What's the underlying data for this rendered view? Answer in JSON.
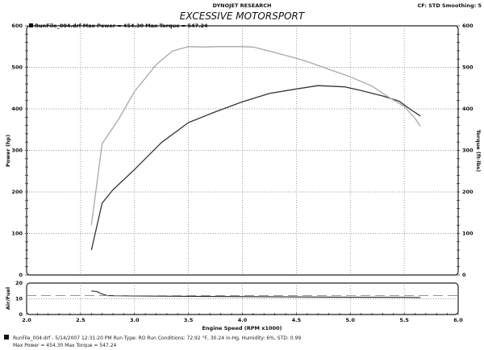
{
  "header": {
    "company": "DYNOJET RESEARCH",
    "settings": "CF: STD  Smoothing: 5",
    "title": "EXCESSIVE MOTORSPORT"
  },
  "legend_top": "RunFile_004.drf Max Power = 454.30    Max Torque = 547.24",
  "footer": {
    "line1": "RunFile_004.drf - 5/14/2007 12:31:20 PM  Run Type: RO  Run Conditions: 72.92 °F, 30.24 in-Hg,  Humidity:  6%, STD: 0.99",
    "line2": "Max Power = 454.30  Max Torque = 547.24"
  },
  "colors": {
    "power": "#333333",
    "torque": "#a8a8a8",
    "afr": "#222222",
    "afr_ref": "#888888"
  },
  "chart_data": [
    {
      "type": "line",
      "title": "EXCESSIVE MOTORSPORT",
      "xlabel": "Engine Speed (RPM x1000)",
      "ylabel": "Power (hp)",
      "y2label": "Torque (ft-lbs)",
      "xlim": [
        2.0,
        6.0
      ],
      "ylim": [
        0,
        600
      ],
      "y2lim": [
        0,
        600
      ],
      "xticks": [
        "2.0",
        "2.5",
        "3.0",
        "3.5",
        "4.0",
        "4.5",
        "5.0",
        "5.5",
        "6.0"
      ],
      "yticks": [
        "0",
        "100",
        "200",
        "300",
        "400",
        "500",
        "600"
      ],
      "grid": true,
      "series": [
        {
          "name": "Power",
          "color": "#333333",
          "x": [
            2.6,
            2.7,
            2.8,
            3.0,
            3.25,
            3.5,
            3.75,
            4.0,
            4.25,
            4.5,
            4.7,
            4.95,
            5.1,
            5.3,
            5.45,
            5.55,
            5.65
          ],
          "y": [
            60,
            173,
            205,
            254,
            319,
            367,
            393,
            417,
            437,
            448,
            456,
            453,
            444,
            431,
            419,
            400,
            383
          ]
        },
        {
          "name": "Torque",
          "color": "#a8a8a8",
          "x": [
            2.6,
            2.7,
            2.85,
            3.0,
            3.2,
            3.35,
            3.5,
            3.65,
            3.75,
            4.0,
            4.1,
            4.25,
            4.5,
            4.6,
            4.75,
            5.0,
            5.2,
            5.35,
            5.5,
            5.6,
            5.65
          ],
          "y": [
            120,
            316,
            374,
            442,
            506,
            539,
            550,
            549,
            550,
            550,
            549,
            539,
            522,
            514,
            500,
            477,
            455,
            429,
            406,
            377,
            358
          ]
        }
      ]
    },
    {
      "type": "line",
      "ylabel": "Air/Fuel",
      "xlim": [
        2.0,
        6.0
      ],
      "ylim": [
        0,
        20
      ],
      "yticks": [
        "0",
        "10",
        "20"
      ],
      "series": [
        {
          "name": "Air/Fuel",
          "color": "#222222",
          "x": [
            2.6,
            2.65,
            2.7,
            2.75,
            3.0,
            3.5,
            4.0,
            4.5,
            5.0,
            5.5,
            5.65
          ],
          "y": [
            15,
            14.6,
            13,
            12,
            11.8,
            11.6,
            11.4,
            11.2,
            11.0,
            10.9,
            10.8
          ]
        },
        {
          "name": "Reference",
          "color": "#888888",
          "dashed": true,
          "x": [
            2.0,
            6.0
          ],
          "y": [
            12,
            12
          ]
        }
      ]
    }
  ]
}
